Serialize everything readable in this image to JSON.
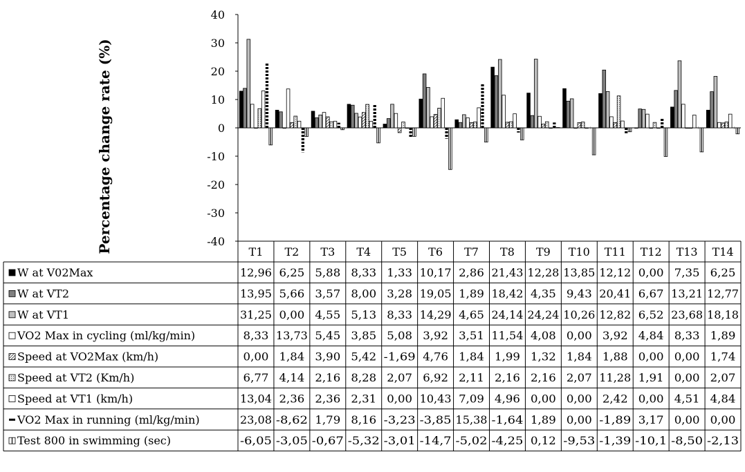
{
  "chart_data": {
    "type": "bar",
    "ylabel": "Percentage change rate (%)",
    "ylim": [
      -40,
      40
    ],
    "yticks": [
      40,
      30,
      20,
      10,
      0,
      -10,
      -20,
      -30,
      -40
    ],
    "grid": false,
    "legend": "data-table-rows",
    "categories": [
      "T1",
      "T2",
      "T3",
      "T4",
      "T5",
      "T6",
      "T7",
      "T8",
      "T9",
      "T10",
      "T11",
      "T12",
      "T13",
      "T14"
    ],
    "series": [
      {
        "name": "W at V02Max",
        "style": "solid-black",
        "values": [
          12.96,
          6.25,
          5.88,
          8.33,
          1.33,
          10.17,
          2.86,
          21.43,
          12.28,
          13.85,
          12.12,
          0.0,
          7.35,
          6.25
        ],
        "labels": [
          "12,96",
          "6,25",
          "5,88",
          "8,33",
          "1,33",
          "10,17",
          "2,86",
          "21,43",
          "12,28",
          "13,85",
          "12,12",
          "0,00",
          "7,35",
          "6,25"
        ]
      },
      {
        "name": "W at VT2",
        "style": "dark-gray",
        "values": [
          13.95,
          5.66,
          3.57,
          8.0,
          3.28,
          19.05,
          1.89,
          18.42,
          4.35,
          9.43,
          20.41,
          6.67,
          13.21,
          12.77
        ],
        "labels": [
          "13,95",
          "5,66",
          "3,57",
          "8,00",
          "3,28",
          "19,05",
          "1,89",
          "18,42",
          "4,35",
          "9,43",
          "20,41",
          "6,67",
          "13,21",
          "12,77"
        ]
      },
      {
        "name": "W at VT1",
        "style": "light-gray",
        "values": [
          31.25,
          0.0,
          4.55,
          5.13,
          8.33,
          14.29,
          4.65,
          24.14,
          24.24,
          10.26,
          12.82,
          6.52,
          23.68,
          18.18
        ],
        "labels": [
          "31,25",
          "0,00",
          "4,55",
          "5,13",
          "8,33",
          "14,29",
          "4,65",
          "24,14",
          "24,24",
          "10,26",
          "12,82",
          "6,52",
          "23,68",
          "18,18"
        ]
      },
      {
        "name": "VO2 Max in cycling (ml/kg/min)",
        "style": "white",
        "values": [
          8.33,
          13.73,
          5.45,
          3.85,
          5.08,
          3.92,
          3.51,
          11.54,
          4.08,
          0.0,
          3.92,
          4.84,
          8.33,
          1.89
        ],
        "labels": [
          "8,33",
          "13,73",
          "5,45",
          "3,85",
          "5,08",
          "3,92",
          "3,51",
          "11,54",
          "4,08",
          "0,00",
          "3,92",
          "4,84",
          "8,33",
          "1,89"
        ]
      },
      {
        "name": "Speed at VO2Max (km/h)",
        "style": "hatched",
        "values": [
          0.0,
          1.84,
          3.9,
          5.42,
          -1.69,
          4.76,
          1.84,
          1.99,
          1.32,
          1.84,
          1.88,
          0.0,
          0.0,
          1.74
        ],
        "labels": [
          "0,00",
          "1,84",
          "3,90",
          "5,42",
          "-1,69",
          "4,76",
          "1,84",
          "1,99",
          "1,32",
          "1,84",
          "1,88",
          "0,00",
          "0,00",
          "1,74"
        ]
      },
      {
        "name": "Speed at VT2 (Km/h)",
        "style": "dotted",
        "values": [
          6.77,
          4.14,
          2.16,
          8.28,
          2.07,
          6.92,
          2.11,
          2.16,
          2.16,
          2.07,
          11.28,
          1.91,
          0.0,
          2.07
        ],
        "labels": [
          "6,77",
          "4,14",
          "2,16",
          "8,28",
          "2,07",
          "6,92",
          "2,11",
          "2,16",
          "2,16",
          "2,07",
          "11,28",
          "1,91",
          "0,00",
          "2,07"
        ]
      },
      {
        "name": "Speed at VT1 (km/h)",
        "style": "white",
        "values": [
          13.04,
          2.36,
          2.36,
          2.31,
          0.0,
          10.43,
          7.09,
          4.96,
          0.0,
          0.0,
          2.42,
          0.0,
          4.51,
          4.84
        ],
        "labels": [
          "13,04",
          "2,36",
          "2,36",
          "2,31",
          "0,00",
          "10,43",
          "7,09",
          "4,96",
          "0,00",
          "0,00",
          "2,42",
          "0,00",
          "4,51",
          "4,84"
        ]
      },
      {
        "name": "VO2 Max in running (ml/kg/min)",
        "style": "dashed",
        "values": [
          23.08,
          -8.62,
          1.79,
          8.16,
          -3.23,
          -3.85,
          15.38,
          -1.64,
          1.89,
          0.0,
          -1.89,
          3.17,
          0.0,
          0.0
        ],
        "labels": [
          "23,08",
          "-8,62",
          "1,79",
          "8,16",
          "-3,23",
          "-3,85",
          "15,38",
          "-1,64",
          "1,89",
          "0,00",
          "-1,89",
          "3,17",
          "0,00",
          "0,00"
        ]
      },
      {
        "name": "Test 800 in swimming (sec)",
        "style": "white-stripe",
        "values": [
          -6.05,
          -3.05,
          -0.67,
          -5.32,
          -3.01,
          -14.7,
          -5.02,
          -4.25,
          0.12,
          -9.53,
          -1.39,
          -10.1,
          -8.5,
          -2.13
        ],
        "labels": [
          "-6,05",
          "-3,05",
          "-0,67",
          "-5,32",
          "-3,01",
          "-14,7",
          "-5,02",
          "-4,25",
          "0,12",
          "-9,53",
          "-1,39",
          "-10,1",
          "-8,50",
          "-2,13"
        ]
      }
    ]
  }
}
